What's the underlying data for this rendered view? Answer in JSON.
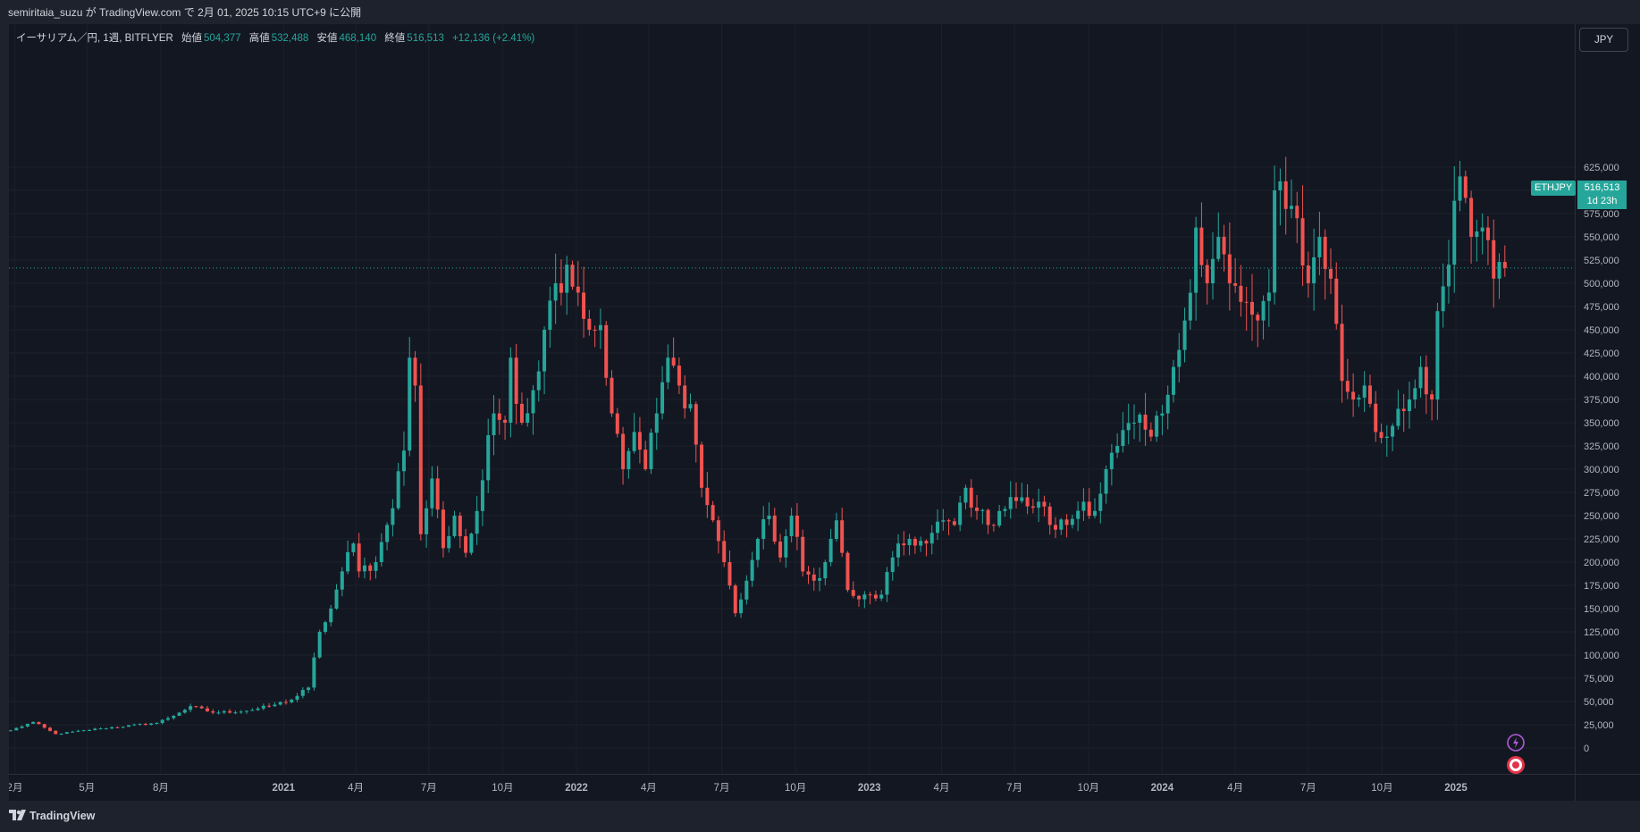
{
  "header": {
    "published_text": "semiritaia_suzu が TradingView.com で 2月 01, 2025 10:15 UTC+9 に公開"
  },
  "legend": {
    "symbol_desc": "イーサリアム／円, 1週, BITFLYER",
    "open_label": "始値",
    "open_value": "504,377",
    "high_label": "高値",
    "high_value": "532,488",
    "low_label": "安値",
    "low_value": "468,140",
    "close_label": "終値",
    "close_value": "516,513",
    "change": "+12,136 (+2.41%)"
  },
  "currency_button": "JPY",
  "price_tag": {
    "symbol": "ETHJPY",
    "value": "516,513",
    "countdown": "1d 23h"
  },
  "footer": {
    "brand": "TradingView"
  },
  "icons": {
    "flash": "flash-icon",
    "record": "record-icon",
    "logo": "tradingview-logo-icon"
  },
  "colors": {
    "up": "#26a69a",
    "down": "#ef5350",
    "bg": "#131722",
    "grid": "#1f2330",
    "text": "#b2b5be"
  },
  "chart_data": {
    "type": "candlestick",
    "title": "",
    "ylabel": "",
    "xlabel": "",
    "interval": "1週",
    "ylim": [
      -30000,
      675000
    ],
    "y_ticks": [
      0,
      25000,
      50000,
      75000,
      100000,
      125000,
      150000,
      175000,
      200000,
      225000,
      250000,
      275000,
      300000,
      325000,
      350000,
      375000,
      400000,
      425000,
      450000,
      475000,
      500000,
      525000,
      550000,
      575000,
      600000,
      625000
    ],
    "y_tick_labels": [
      "0",
      "25,000",
      "50,000",
      "75,000",
      "100,000",
      "125,000",
      "150,000",
      "175,000",
      "200,000",
      "225,000",
      "250,000",
      "275,000",
      "300,000",
      "325,000",
      "350,000",
      "375,000",
      "400,000",
      "425,000",
      "450,000",
      "475,000",
      "500,000",
      "525,000",
      "550,000",
      "575,000",
      "600,000",
      "625,000"
    ],
    "x_start": "2020-01-27",
    "x_ticks": [
      {
        "label": "2月",
        "date": "2020-02-01",
        "bold": false
      },
      {
        "label": "5月",
        "date": "2020-05-01",
        "bold": false
      },
      {
        "label": "8月",
        "date": "2020-08-01",
        "bold": false
      },
      {
        "label": "2021",
        "date": "2021-01-01",
        "bold": true
      },
      {
        "label": "4月",
        "date": "2021-04-01",
        "bold": false
      },
      {
        "label": "7月",
        "date": "2021-07-01",
        "bold": false
      },
      {
        "label": "10月",
        "date": "2021-10-01",
        "bold": false
      },
      {
        "label": "2022",
        "date": "2022-01-01",
        "bold": true
      },
      {
        "label": "4月",
        "date": "2022-04-01",
        "bold": false
      },
      {
        "label": "7月",
        "date": "2022-07-01",
        "bold": false
      },
      {
        "label": "10月",
        "date": "2022-10-01",
        "bold": false
      },
      {
        "label": "2023",
        "date": "2023-01-01",
        "bold": true
      },
      {
        "label": "4月",
        "date": "2023-04-01",
        "bold": false
      },
      {
        "label": "7月",
        "date": "2023-07-01",
        "bold": false
      },
      {
        "label": "10月",
        "date": "2023-10-01",
        "bold": false
      },
      {
        "label": "2024",
        "date": "2024-01-01",
        "bold": true
      },
      {
        "label": "4月",
        "date": "2024-04-01",
        "bold": false
      },
      {
        "label": "7月",
        "date": "2024-07-01",
        "bold": false
      },
      {
        "label": "10月",
        "date": "2024-10-01",
        "bold": false
      },
      {
        "label": "2025",
        "date": "2025-01-01",
        "bold": true
      }
    ],
    "last_price": 516513,
    "close_anchors": [
      [
        0,
        19000
      ],
      [
        4,
        28000
      ],
      [
        8,
        15000
      ],
      [
        16,
        21000
      ],
      [
        26,
        27000
      ],
      [
        30,
        38000
      ],
      [
        32,
        45000
      ],
      [
        36,
        38000
      ],
      [
        42,
        40000
      ],
      [
        46,
        45000
      ],
      [
        50,
        52000
      ],
      [
        53,
        65000
      ],
      [
        55,
        125000
      ],
      [
        57,
        150000
      ],
      [
        59,
        190000
      ],
      [
        61,
        220000
      ],
      [
        62,
        190000
      ],
      [
        65,
        200000
      ],
      [
        67,
        240000
      ],
      [
        70,
        320000
      ],
      [
        71,
        420000
      ],
      [
        72,
        390000
      ],
      [
        73,
        230000
      ],
      [
        75,
        290000
      ],
      [
        77,
        215000
      ],
      [
        79,
        250000
      ],
      [
        81,
        210000
      ],
      [
        83,
        255000
      ],
      [
        86,
        360000
      ],
      [
        88,
        350000
      ],
      [
        89,
        420000
      ],
      [
        91,
        350000
      ],
      [
        93,
        385000
      ],
      [
        95,
        450000
      ],
      [
        97,
        500000
      ],
      [
        99,
        520000
      ],
      [
        101,
        490000
      ],
      [
        103,
        450000
      ],
      [
        105,
        455000
      ],
      [
        107,
        360000
      ],
      [
        109,
        300000
      ],
      [
        111,
        340000
      ],
      [
        113,
        300000
      ],
      [
        115,
        360000
      ],
      [
        117,
        420000
      ],
      [
        119,
        390000
      ],
      [
        121,
        370000
      ],
      [
        123,
        280000
      ],
      [
        125,
        245000
      ],
      [
        127,
        200000
      ],
      [
        129,
        145000
      ],
      [
        131,
        180000
      ],
      [
        133,
        225000
      ],
      [
        135,
        250000
      ],
      [
        137,
        205000
      ],
      [
        139,
        250000
      ],
      [
        141,
        190000
      ],
      [
        143,
        180000
      ],
      [
        145,
        200000
      ],
      [
        147,
        245000
      ],
      [
        149,
        170000
      ],
      [
        151,
        160000
      ],
      [
        155,
        165000
      ],
      [
        157,
        205000
      ],
      [
        160,
        225000
      ],
      [
        163,
        220000
      ],
      [
        166,
        245000
      ],
      [
        168,
        240000
      ],
      [
        170,
        280000
      ],
      [
        172,
        255000
      ],
      [
        174,
        240000
      ],
      [
        176,
        255000
      ],
      [
        178,
        270000
      ],
      [
        181,
        260000
      ],
      [
        183,
        265000
      ],
      [
        185,
        240000
      ],
      [
        188,
        240000
      ],
      [
        191,
        265000
      ],
      [
        193,
        255000
      ],
      [
        195,
        300000
      ],
      [
        197,
        325000
      ],
      [
        200,
        350000
      ],
      [
        203,
        335000
      ],
      [
        205,
        360000
      ],
      [
        206,
        380000
      ],
      [
        207,
        410000
      ],
      [
        209,
        460000
      ],
      [
        211,
        560000
      ],
      [
        213,
        500000
      ],
      [
        215,
        550000
      ],
      [
        217,
        500000
      ],
      [
        219,
        480000
      ],
      [
        222,
        460000
      ],
      [
        224,
        490000
      ],
      [
        225,
        600000
      ],
      [
        227,
        580000
      ],
      [
        229,
        570000
      ],
      [
        231,
        500000
      ],
      [
        233,
        550000
      ],
      [
        235,
        505000
      ],
      [
        237,
        395000
      ],
      [
        239,
        375000
      ],
      [
        241,
        390000
      ],
      [
        243,
        340000
      ],
      [
        245,
        335000
      ],
      [
        247,
        365000
      ],
      [
        249,
        375000
      ],
      [
        251,
        410000
      ],
      [
        253,
        375000
      ],
      [
        254,
        470000
      ],
      [
        256,
        520000
      ],
      [
        258,
        615000
      ],
      [
        260,
        550000
      ],
      [
        262,
        560000
      ],
      [
        264,
        505000
      ],
      [
        266,
        516513
      ]
    ]
  }
}
